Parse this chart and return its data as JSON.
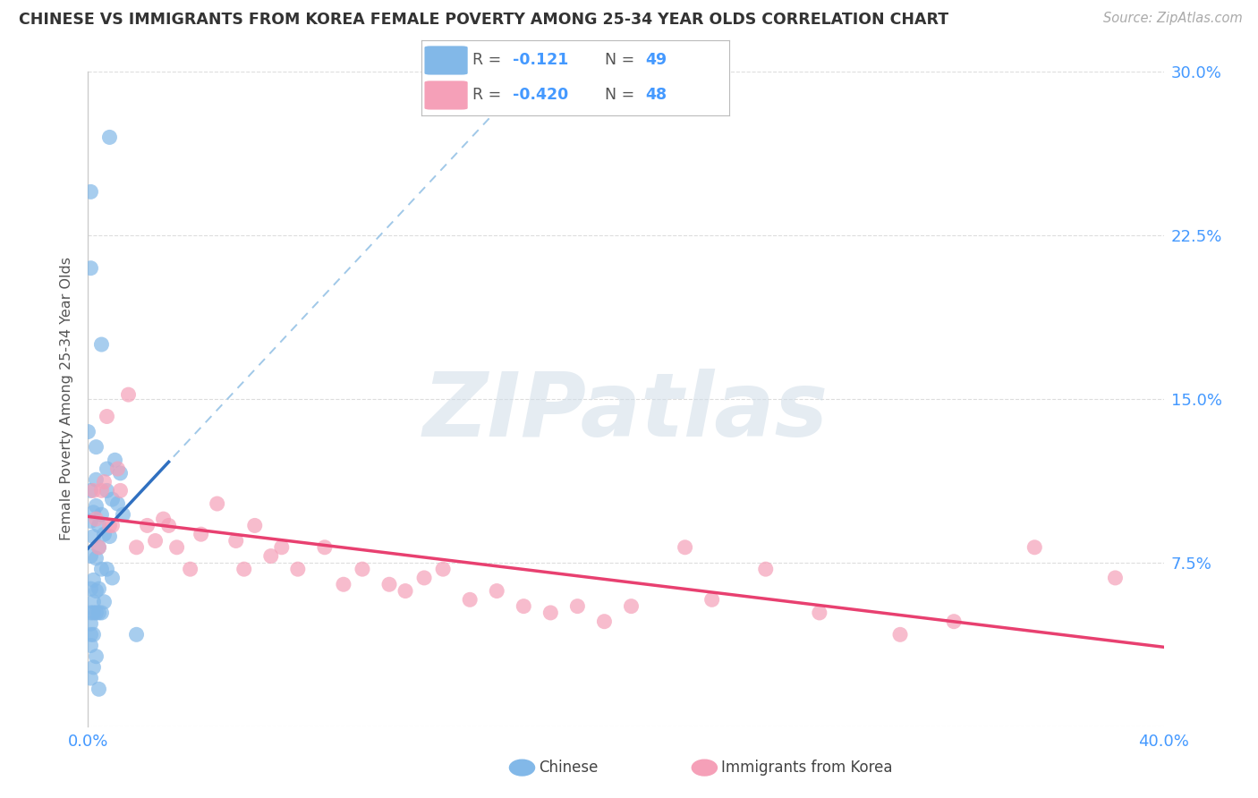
{
  "title": "CHINESE VS IMMIGRANTS FROM KOREA FEMALE POVERTY AMONG 25-34 YEAR OLDS CORRELATION CHART",
  "source": "Source: ZipAtlas.com",
  "ylabel": "Female Poverty Among 25-34 Year Olds",
  "xlim": [
    0.0,
    0.4
  ],
  "ylim": [
    0.0,
    0.3
  ],
  "ytick_positions": [
    0.0,
    0.075,
    0.15,
    0.225,
    0.3
  ],
  "ytick_labels": [
    "",
    "7.5%",
    "15.0%",
    "22.5%",
    "30.0%"
  ],
  "xtick_positions": [
    0.0,
    0.4
  ],
  "xtick_labels": [
    "0.0%",
    "40.0%"
  ],
  "r_chinese": -0.121,
  "n_chinese": 49,
  "r_korea": -0.42,
  "n_korea": 48,
  "color_chinese": "#82b8e8",
  "color_korea": "#f5a0b8",
  "color_line_chinese": "#3070c0",
  "color_line_korea": "#e84070",
  "color_line_chinese_dashed": "#a0c8e8",
  "color_axis_labels": "#4499ff",
  "watermark_text": "ZIPatlas",
  "legend_label_chinese": "Chinese",
  "legend_label_korea": "Immigrants from Korea",
  "chinese_x": [
    0.001,
    0.008,
    0.001,
    0.005,
    0.0,
    0.003,
    0.01,
    0.007,
    0.012,
    0.003,
    0.001,
    0.007,
    0.009,
    0.011,
    0.003,
    0.002,
    0.005,
    0.013,
    0.001,
    0.004,
    0.006,
    0.008,
    0.002,
    0.004,
    0.001,
    0.003,
    0.005,
    0.007,
    0.009,
    0.002,
    0.001,
    0.004,
    0.003,
    0.006,
    0.002,
    0.005,
    0.003,
    0.004,
    0.002,
    0.001,
    0.001,
    0.002,
    0.001,
    0.001,
    0.003,
    0.002,
    0.001,
    0.004,
    0.018
  ],
  "chinese_y": [
    0.245,
    0.27,
    0.21,
    0.175,
    0.135,
    0.128,
    0.122,
    0.118,
    0.116,
    0.113,
    0.108,
    0.108,
    0.104,
    0.102,
    0.101,
    0.098,
    0.097,
    0.097,
    0.094,
    0.092,
    0.088,
    0.087,
    0.087,
    0.082,
    0.078,
    0.077,
    0.072,
    0.072,
    0.068,
    0.067,
    0.063,
    0.063,
    0.062,
    0.057,
    0.057,
    0.052,
    0.052,
    0.052,
    0.052,
    0.052,
    0.047,
    0.042,
    0.042,
    0.037,
    0.032,
    0.027,
    0.022,
    0.017,
    0.042
  ],
  "korea_x": [
    0.002,
    0.006,
    0.003,
    0.008,
    0.005,
    0.004,
    0.009,
    0.007,
    0.012,
    0.015,
    0.011,
    0.018,
    0.022,
    0.028,
    0.025,
    0.033,
    0.03,
    0.038,
    0.042,
    0.048,
    0.055,
    0.062,
    0.058,
    0.068,
    0.072,
    0.078,
    0.088,
    0.095,
    0.102,
    0.112,
    0.118,
    0.125,
    0.132,
    0.142,
    0.152,
    0.162,
    0.172,
    0.182,
    0.192,
    0.202,
    0.222,
    0.232,
    0.252,
    0.272,
    0.302,
    0.322,
    0.352,
    0.382
  ],
  "korea_y": [
    0.108,
    0.112,
    0.095,
    0.092,
    0.108,
    0.082,
    0.092,
    0.142,
    0.108,
    0.152,
    0.118,
    0.082,
    0.092,
    0.095,
    0.085,
    0.082,
    0.092,
    0.072,
    0.088,
    0.102,
    0.085,
    0.092,
    0.072,
    0.078,
    0.082,
    0.072,
    0.082,
    0.065,
    0.072,
    0.065,
    0.062,
    0.068,
    0.072,
    0.058,
    0.062,
    0.055,
    0.052,
    0.055,
    0.048,
    0.055,
    0.082,
    0.058,
    0.072,
    0.052,
    0.042,
    0.048,
    0.082,
    0.068
  ]
}
